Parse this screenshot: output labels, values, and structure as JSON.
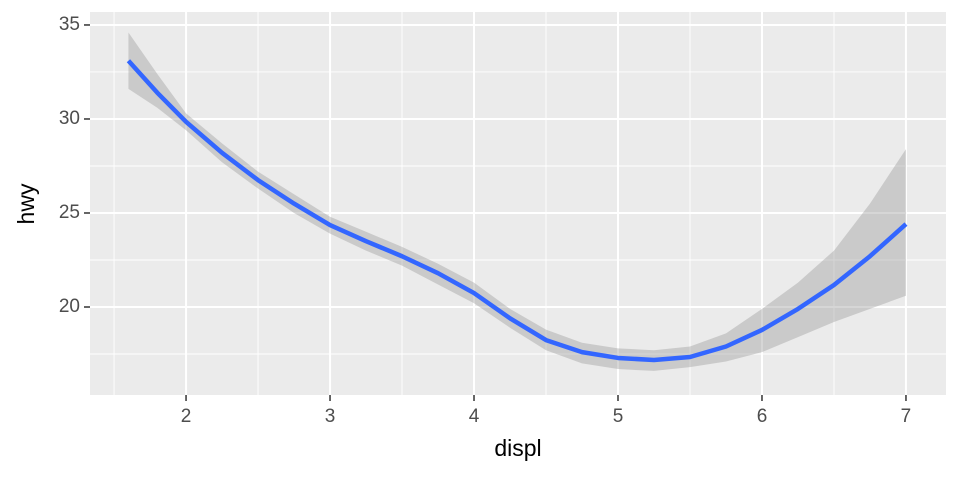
{
  "chart_data": {
    "type": "line",
    "x_label": "displ",
    "y_label": "hwy",
    "x": [
      1.6,
      1.8,
      2.0,
      2.25,
      2.5,
      2.75,
      3.0,
      3.25,
      3.5,
      3.75,
      4.0,
      4.25,
      4.5,
      4.75,
      5.0,
      5.25,
      5.5,
      5.75,
      6.0,
      6.25,
      6.5,
      6.75,
      7.0
    ],
    "series": [
      {
        "color": "#3366ff",
        "values": [
          33.1,
          31.4,
          29.85,
          28.2,
          26.75,
          25.5,
          24.36,
          23.5,
          22.7,
          21.8,
          20.74,
          19.4,
          18.24,
          17.6,
          17.29,
          17.18,
          17.34,
          17.9,
          18.78,
          19.9,
          21.17,
          22.7,
          24.41
        ],
        "lower": [
          31.6,
          30.6,
          29.4,
          27.7,
          26.3,
          25.0,
          23.9,
          23.0,
          22.2,
          21.2,
          20.2,
          18.9,
          17.7,
          17.0,
          16.7,
          16.6,
          16.8,
          17.1,
          17.6,
          18.4,
          19.2,
          19.9,
          20.6
        ],
        "upper": [
          34.6,
          32.4,
          30.3,
          28.7,
          27.2,
          26.0,
          24.8,
          24.0,
          23.2,
          22.3,
          21.3,
          19.9,
          18.8,
          18.1,
          17.8,
          17.7,
          17.9,
          18.6,
          19.9,
          21.3,
          23.0,
          25.5,
          28.4
        ],
        "band_color": "#999999"
      }
    ],
    "xlim": [
      1.333,
      7.278
    ],
    "ylim": [
      15.32,
      35.69
    ],
    "xticks": [
      2,
      3,
      4,
      5,
      6,
      7
    ],
    "yticks": [
      20,
      25,
      30,
      35
    ],
    "x_minor_ticks": [
      1.5,
      2.5,
      3.5,
      4.5,
      5.5,
      6.5
    ],
    "y_minor_ticks": [
      17.5,
      22.5,
      27.5,
      32.5
    ],
    "grid": true,
    "panel_color": "#ebebeb"
  }
}
